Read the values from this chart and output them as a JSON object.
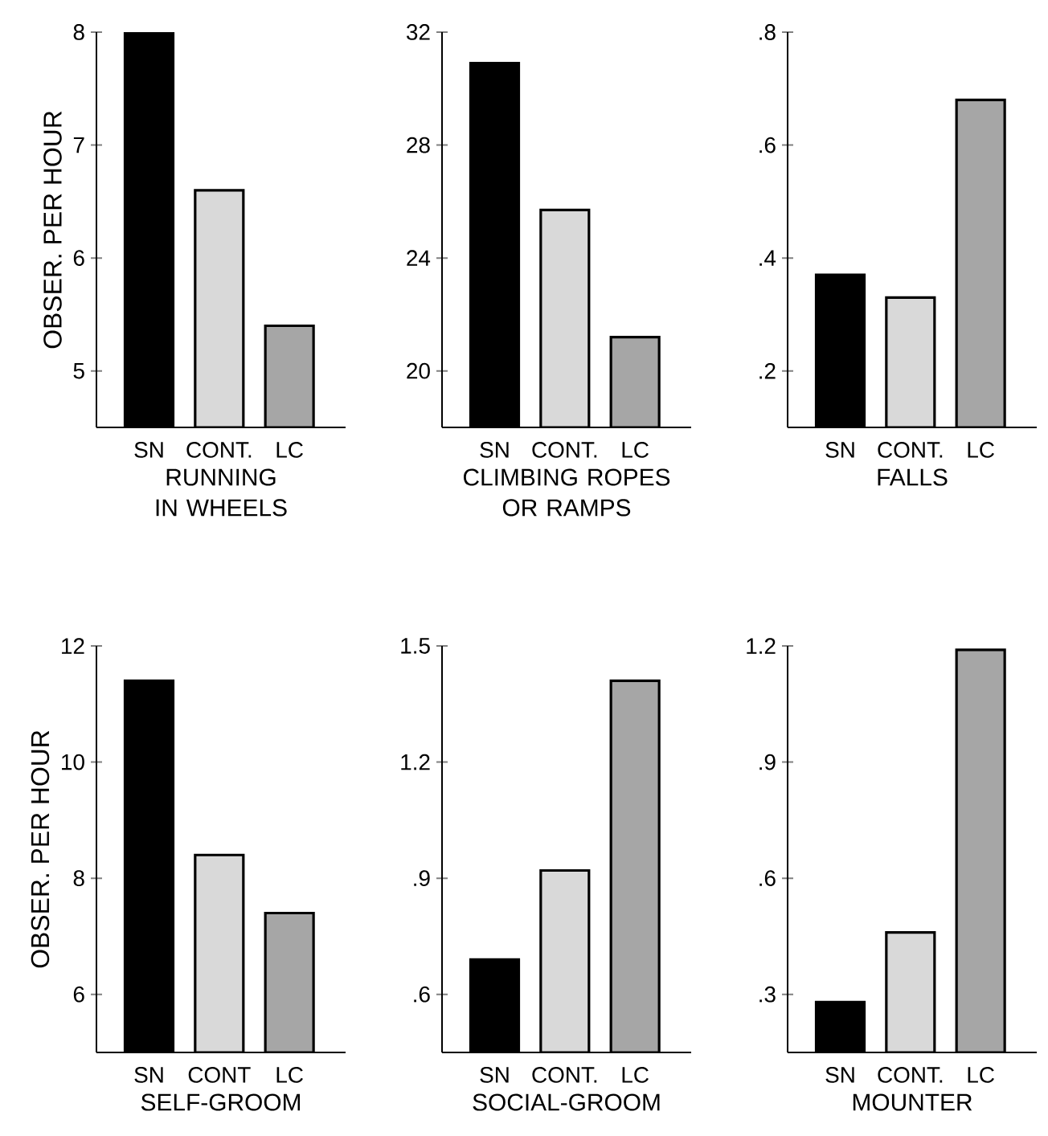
{
  "chart_data": [
    {
      "type": "bar",
      "categories": [
        "SN",
        "CONT.",
        "LC"
      ],
      "values": [
        8.0,
        6.6,
        5.4
      ],
      "colors": [
        "#000000",
        "#d9d9d9",
        "#a6a6a6"
      ],
      "ylim": [
        4.5,
        8
      ],
      "yticks": [
        5,
        6,
        7,
        8
      ],
      "ylabel": "OBSER. PER HOUR",
      "xlabel": "RUNNING IN WHEELS"
    },
    {
      "type": "bar",
      "categories": [
        "SN",
        "CONT.",
        "LC"
      ],
      "values": [
        30.9,
        25.7,
        21.2
      ],
      "colors": [
        "#000000",
        "#d9d9d9",
        "#a6a6a6"
      ],
      "ylim": [
        18,
        32
      ],
      "yticks": [
        20,
        24,
        28,
        32
      ],
      "xlabel": "CLIMBING ROPES OR RAMPS"
    },
    {
      "type": "bar",
      "categories": [
        "SN",
        "CONT.",
        "LC"
      ],
      "values": [
        0.37,
        0.33,
        0.68
      ],
      "colors": [
        "#000000",
        "#d9d9d9",
        "#a6a6a6"
      ],
      "ylim": [
        0.1,
        0.8
      ],
      "yticks": [
        {
          "value": 0.2,
          "label": ".2"
        },
        {
          "value": 0.4,
          "label": ".4"
        },
        {
          "value": 0.6,
          "label": ".6"
        },
        {
          "value": 0.8,
          "label": ".8"
        }
      ],
      "xlabel": "FALLS"
    },
    {
      "type": "bar",
      "categories": [
        "SN",
        "CONT",
        "LC"
      ],
      "values": [
        11.4,
        8.4,
        7.4
      ],
      "colors": [
        "#000000",
        "#d9d9d9",
        "#a6a6a6"
      ],
      "ylim": [
        5,
        12
      ],
      "yticks": [
        6,
        8,
        10,
        12
      ],
      "ylabel": "OBSER. PER HOUR",
      "xlabel": "SELF-GROOM"
    },
    {
      "type": "bar",
      "categories": [
        "SN",
        "CONT.",
        "LC"
      ],
      "values": [
        0.69,
        0.92,
        1.41
      ],
      "colors": [
        "#000000",
        "#d9d9d9",
        "#a6a6a6"
      ],
      "ylim": [
        0.45,
        1.5
      ],
      "yticks": [
        {
          "value": 0.6,
          "label": ".6"
        },
        {
          "value": 0.9,
          "label": ".9"
        },
        1.2,
        1.5
      ],
      "xlabel": "SOCIAL-GROOM"
    },
    {
      "type": "bar",
      "categories": [
        "SN",
        "CONT.",
        "LC"
      ],
      "values": [
        0.28,
        0.46,
        1.19
      ],
      "colors": [
        "#000000",
        "#d9d9d9",
        "#a6a6a6"
      ],
      "ylim": [
        0.15,
        1.2
      ],
      "yticks": [
        {
          "value": 0.3,
          "label": ".3"
        },
        {
          "value": 0.6,
          "label": ".6"
        },
        {
          "value": 0.9,
          "label": ".9"
        },
        1.2
      ],
      "xlabel": "MOUNTER"
    }
  ]
}
